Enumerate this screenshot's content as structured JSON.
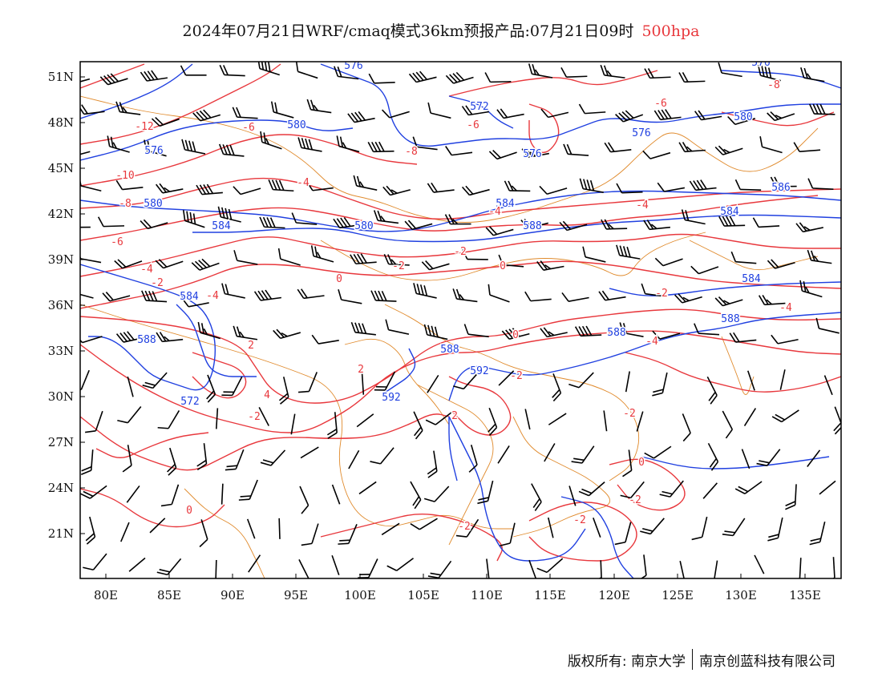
{
  "title": {
    "main": "2024年07月21日WRF/cmaq模式36km预报产品:07月21日09时",
    "level": "500hpa"
  },
  "axes": {
    "x_ticks": [
      "80E",
      "85E",
      "90E",
      "95E",
      "100E",
      "105E",
      "110E",
      "115E",
      "120E",
      "125E",
      "130E",
      "135E"
    ],
    "y_ticks": [
      "51N",
      "48N",
      "45N",
      "42N",
      "39N",
      "36N",
      "33N",
      "30N",
      "27N",
      "24N",
      "21N"
    ]
  },
  "colors": {
    "height_contour": "#2040e0",
    "temp_contour": "#e8383d",
    "boundary": "#e08a2c",
    "wind_barb": "#000000"
  },
  "contour_labels": {
    "height": [
      "576",
      "572",
      "580",
      "576",
      "576",
      "580",
      "576",
      "580",
      "586",
      "584",
      "584",
      "580",
      "584",
      "588",
      "584",
      "584",
      "588",
      "588",
      "588",
      "588",
      "592",
      "592",
      "572",
      "576"
    ],
    "temperature": [
      "-12",
      "-10",
      "-8",
      "-6",
      "-6",
      "-8",
      "-6",
      "-4",
      "-2",
      "-2",
      "-4",
      "-4",
      "-8",
      "-6",
      "-4",
      "-4",
      "-2",
      "0",
      "0",
      "2",
      "4",
      "2",
      "0",
      "-2",
      "-4",
      "-2",
      "2",
      "0",
      "-2",
      "-2",
      "-2",
      "-2",
      "-2",
      "-4",
      "0"
    ]
  },
  "footer": {
    "left": "版权所有: 南京大学",
    "right": "南京创蓝科技有限公司"
  }
}
